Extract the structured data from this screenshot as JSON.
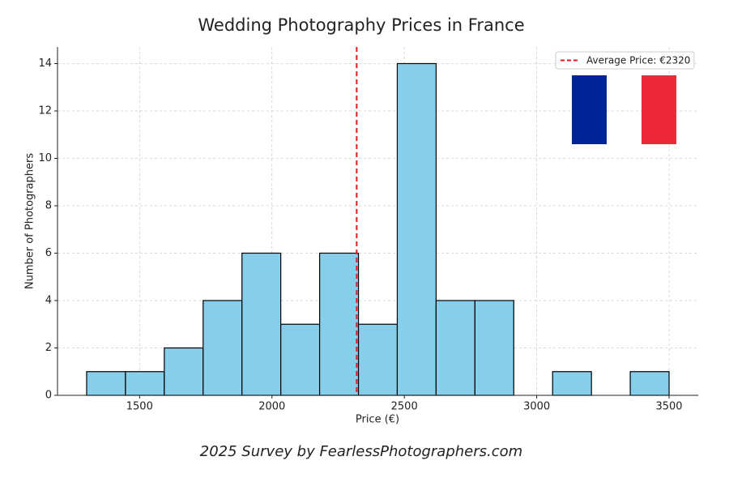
{
  "chart_data": {
    "type": "histogram",
    "title": "Wedding Photography Prices in France",
    "subtitle": "2025 Survey by FearlessPhotographers.com",
    "x_label": "Price (€)",
    "y_label": "Number of Photographers",
    "bins": [
      1300,
      1446.7,
      1593.3,
      1740,
      1886.7,
      2033.3,
      2180,
      2326.7,
      2473.3,
      2620,
      2766.7,
      2913.3,
      3060,
      3206.7,
      3353.3,
      3500
    ],
    "counts": [
      1,
      1,
      2,
      4,
      6,
      3,
      6,
      3,
      14,
      4,
      4,
      0,
      1,
      0,
      1
    ],
    "color": "#87ceeb",
    "mean_line": {
      "name": "Average Price: €2320",
      "value": 2320,
      "color": "#e41a1c"
    },
    "xlim": [
      1190,
      3610
    ],
    "xticks": [
      1500,
      2000,
      2500,
      3000,
      3500
    ],
    "ylim": [
      0,
      14.7
    ],
    "yticks": [
      0,
      2,
      4,
      6,
      8,
      10,
      12,
      14
    ],
    "grid": true,
    "legend": "upper right"
  }
}
